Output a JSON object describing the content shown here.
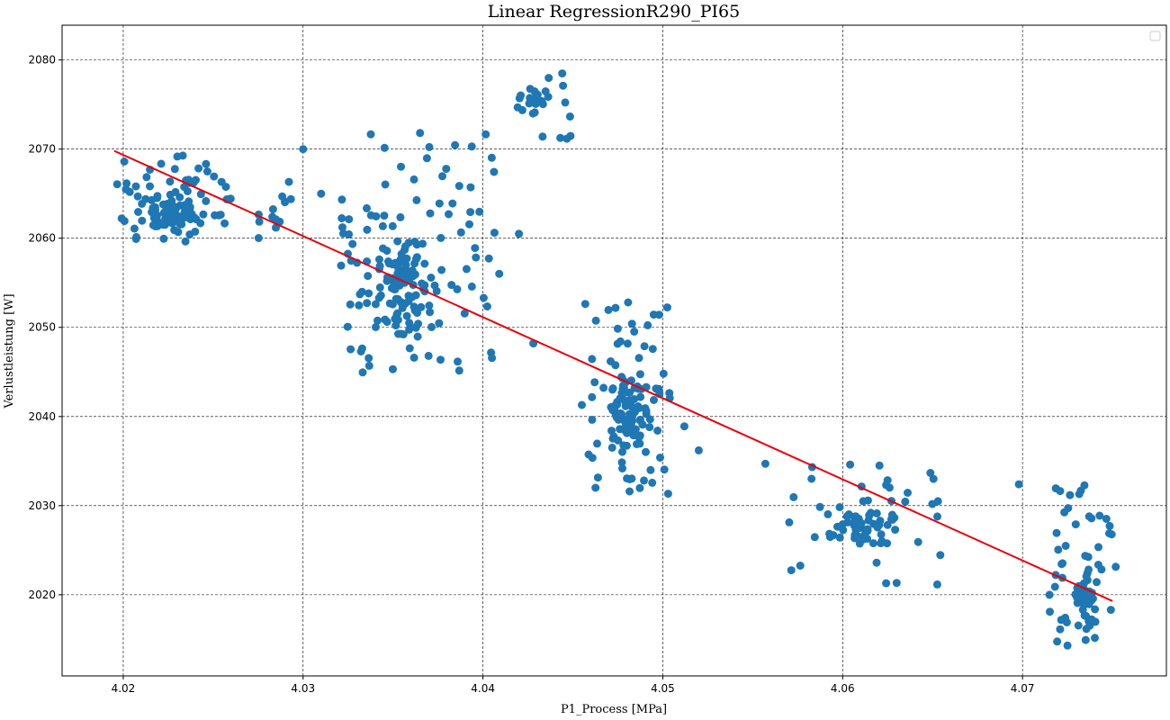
{
  "chart_data": {
    "type": "scatter",
    "title": "Linear RegressionR290_PI65",
    "xlabel": "P1_Process [MPa]",
    "ylabel": "Verlustleistung [W]",
    "xlim": [
      4.0166,
      4.078
    ],
    "ylim": [
      2010.9,
      2083.9
    ],
    "xticks": [
      4.02,
      4.03,
      4.04,
      4.05,
      4.06,
      4.07
    ],
    "xtick_labels": [
      "4.02",
      "4.03",
      "4.04",
      "4.05",
      "4.06",
      "4.07"
    ],
    "yticks": [
      2020,
      2030,
      2040,
      2050,
      2060,
      2070,
      2080
    ],
    "ytick_labels": [
      "2020",
      "2030",
      "2040",
      "2050",
      "2060",
      "2070",
      "2080"
    ],
    "grid": true,
    "grid_style": "dashed",
    "legend": "upper-right (empty)",
    "colors": {
      "points": "#1f77b4",
      "regression": "#e8000b",
      "grid": "#000000"
    },
    "regression_line": {
      "x": [
        4.0195,
        4.075
      ],
      "y": [
        2069.8,
        2019.3
      ]
    },
    "clusters": [
      {
        "x_range": [
          4.0195,
          4.026
        ],
        "y_range": [
          2059.5,
          2069.5
        ],
        "n": 130,
        "core": [
          4.0225,
          2062.5
        ]
      },
      {
        "x_range": [
          4.0275,
          4.03
        ],
        "y_range": [
          2060.0,
          2068.3
        ],
        "n": 14,
        "core": [
          4.0285,
          2063.0
        ]
      },
      {
        "x_range": [
          4.032,
          4.041
        ],
        "y_range": [
          2044.5,
          2071.8
        ],
        "n": 190,
        "core": [
          4.0355,
          2055.0
        ]
      },
      {
        "x_range": [
          4.041,
          4.0455
        ],
        "y_range": [
          2071.0,
          2080.7
        ],
        "n": 30,
        "core": [
          4.0428,
          2075.5
        ]
      },
      {
        "x_range": [
          4.0455,
          4.0505
        ],
        "y_range": [
          2031.3,
          2052.9
        ],
        "n": 140,
        "core": [
          4.048,
          2040.0
        ]
      },
      {
        "x_range": [
          4.057,
          4.0655
        ],
        "y_range": [
          2021.1,
          2034.9
        ],
        "n": 80,
        "core": [
          4.061,
          2028.0
        ]
      },
      {
        "x_range": [
          4.0715,
          4.0752
        ],
        "y_range": [
          2014.3,
          2032.4
        ],
        "n": 85,
        "core": [
          4.0735,
          2020.5
        ]
      }
    ],
    "outliers": [
      {
        "x": 4.031,
        "y": 2065.0
      },
      {
        "x": 4.03,
        "y": 2070.0
      },
      {
        "x": 4.0365,
        "y": 2071.8
      },
      {
        "x": 4.042,
        "y": 2060.5
      },
      {
        "x": 4.0428,
        "y": 2048.2
      },
      {
        "x": 4.0512,
        "y": 2038.9
      },
      {
        "x": 4.052,
        "y": 2036.2
      },
      {
        "x": 4.0557,
        "y": 2034.7
      },
      {
        "x": 4.0653,
        "y": 2030.5
      },
      {
        "x": 4.0698,
        "y": 2032.4
      },
      {
        "x": 4.0715,
        "y": 2020.0
      },
      {
        "x": 4.0725,
        "y": 2014.3
      }
    ]
  }
}
